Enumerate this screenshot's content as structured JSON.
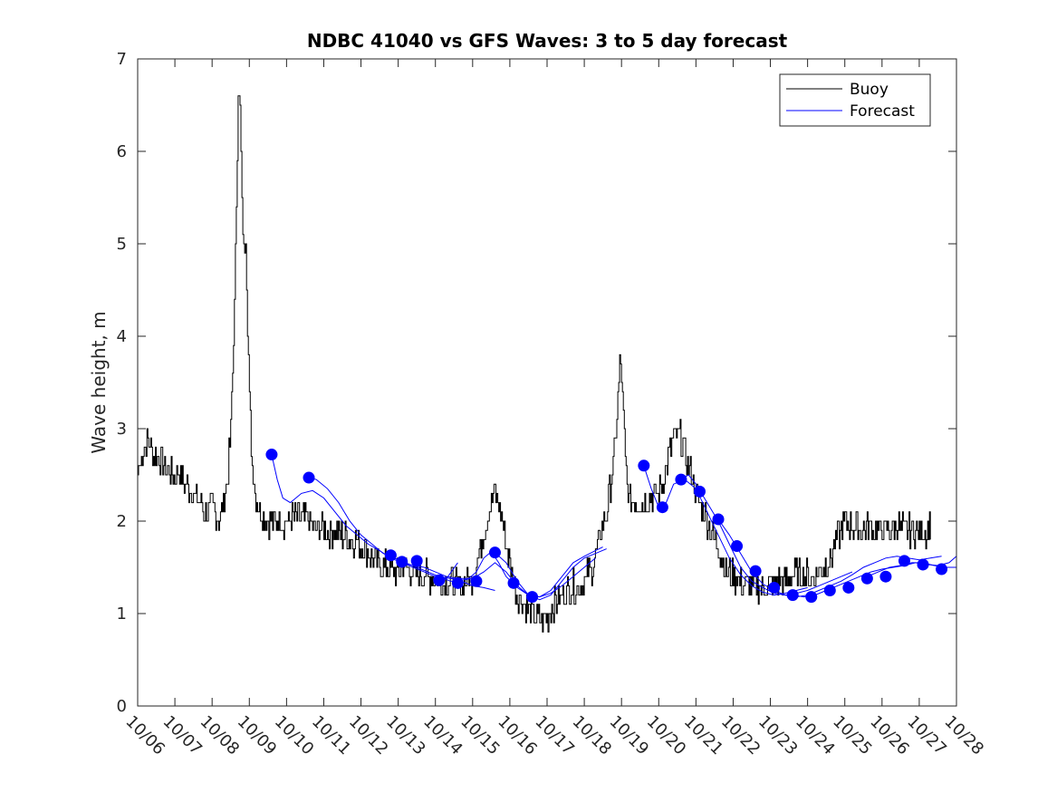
{
  "chart_data": {
    "type": "line",
    "title": "NDBC 41040 vs GFS Waves: 3 to 5 day forecast",
    "xlabel": "",
    "ylabel": "Wave height, m",
    "x_unit": "days since 10/06",
    "xlim": [
      0,
      22
    ],
    "ylim": [
      0,
      7
    ],
    "yticks": [
      0,
      1,
      2,
      3,
      4,
      5,
      6,
      7
    ],
    "xtick_labels": [
      "10/06",
      "10/07",
      "10/08",
      "10/09",
      "10/10",
      "10/11",
      "10/12",
      "10/13",
      "10/14",
      "10/15",
      "10/16",
      "10/17",
      "10/18",
      "10/19",
      "10/20",
      "10/21",
      "10/22",
      "10/23",
      "10/24",
      "10/25",
      "10/26",
      "10/27",
      "10/28"
    ],
    "legend": {
      "position": "top-right",
      "entries": [
        "Buoy",
        "Forecast"
      ]
    },
    "colors": {
      "buoy": "#000000",
      "forecast": "#0000ff",
      "axis": "#262626"
    },
    "buoy_anchors": {
      "x": [
        0.0,
        0.1,
        0.25,
        0.35,
        0.5,
        0.7,
        0.9,
        1.1,
        1.3,
        1.5,
        1.7,
        1.8,
        1.9,
        2.0,
        2.1,
        2.2,
        2.3,
        2.4,
        2.5,
        2.6,
        2.7,
        2.75,
        2.8,
        2.85,
        2.9,
        2.95,
        3.0,
        3.05,
        3.1,
        3.2,
        3.3,
        3.4,
        3.5,
        3.6,
        3.8,
        4.0,
        4.3,
        4.6,
        4.9,
        5.2,
        5.5,
        5.8,
        6.1,
        6.4,
        6.7,
        7.0,
        7.2,
        7.5,
        7.8,
        8.1,
        8.4,
        8.7,
        9.0,
        9.2,
        9.4,
        9.6,
        9.8,
        10.0,
        10.2,
        10.4,
        10.6,
        10.8,
        11.0,
        11.2,
        11.4,
        11.6,
        11.8,
        12.0,
        12.2,
        12.4,
        12.6,
        12.8,
        12.9,
        12.95,
        13.0,
        13.05,
        13.1,
        13.2,
        13.4,
        13.6,
        13.8,
        14.0,
        14.2,
        14.4,
        14.6,
        14.8,
        15.0,
        15.2,
        15.4,
        15.6,
        15.8,
        16.0,
        16.2,
        16.4,
        16.6,
        16.8,
        17.0,
        17.2,
        17.4,
        17.6,
        17.8,
        18.0,
        18.2,
        18.4,
        18.6,
        18.8,
        19.0,
        19.2,
        19.4,
        19.6,
        19.8,
        20.0,
        20.2,
        20.4,
        20.6,
        20.8,
        21.0,
        21.2,
        21.3
      ],
      "y": [
        2.5,
        2.7,
        2.9,
        2.8,
        2.7,
        2.6,
        2.5,
        2.5,
        2.4,
        2.3,
        2.2,
        2.1,
        2.1,
        2.15,
        2.1,
        2.0,
        2.2,
        2.4,
        3.0,
        4.3,
        6.7,
        6.4,
        5.4,
        4.9,
        5.1,
        4.2,
        3.3,
        2.8,
        2.5,
        2.2,
        2.1,
        2.0,
        2.0,
        2.0,
        2.0,
        2.0,
        2.05,
        2.0,
        1.9,
        1.9,
        1.85,
        1.8,
        1.7,
        1.55,
        1.5,
        1.45,
        1.5,
        1.45,
        1.4,
        1.35,
        1.35,
        1.3,
        1.4,
        1.7,
        2.1,
        2.3,
        2.0,
        1.5,
        1.2,
        1.1,
        1.0,
        0.95,
        0.95,
        1.1,
        1.2,
        1.3,
        1.3,
        1.35,
        1.5,
        1.8,
        2.1,
        2.7,
        3.3,
        3.7,
        3.6,
        3.1,
        2.6,
        2.2,
        2.2,
        2.2,
        2.25,
        2.3,
        2.6,
        2.9,
        2.9,
        2.6,
        2.3,
        2.1,
        1.9,
        1.7,
        1.5,
        1.4,
        1.35,
        1.3,
        1.3,
        1.3,
        1.3,
        1.35,
        1.35,
        1.4,
        1.45,
        1.4,
        1.4,
        1.5,
        1.6,
        1.8,
        2.0,
        1.95,
        1.9,
        1.95,
        1.9,
        1.9,
        1.9,
        1.95,
        1.9,
        1.9,
        1.9,
        1.9,
        1.95
      ]
    },
    "forecast_series": [
      {
        "x": [
          3.6,
          3.75,
          3.9,
          4.1,
          4.4,
          4.7,
          5.0,
          5.3,
          5.6,
          5.9,
          6.2,
          6.5,
          6.8,
          7.1,
          7.4,
          7.7,
          8.0,
          8.3,
          8.6
        ],
        "y": [
          2.72,
          2.45,
          2.25,
          2.2,
          2.3,
          2.33,
          2.25,
          2.1,
          1.95,
          1.85,
          1.75,
          1.68,
          1.6,
          1.55,
          1.5,
          1.45,
          1.4,
          1.38,
          1.55
        ]
      },
      {
        "x": [
          4.6,
          4.8,
          5.1,
          5.4,
          5.7,
          6.0,
          6.3,
          6.6,
          6.9,
          7.2,
          7.5,
          7.8,
          8.1,
          8.4,
          8.7,
          9.0,
          9.3,
          9.6
        ],
        "y": [
          2.47,
          2.45,
          2.35,
          2.2,
          2.0,
          1.85,
          1.75,
          1.65,
          1.6,
          1.55,
          1.5,
          1.45,
          1.4,
          1.35,
          1.35,
          1.3,
          1.28,
          1.25
        ]
      },
      {
        "x": [
          6.8,
          7.1,
          7.4,
          7.7,
          8.0,
          8.3,
          8.6,
          8.9,
          9.1,
          9.3,
          9.5,
          9.7,
          9.9,
          10.2,
          10.5,
          10.8,
          11.1,
          11.4,
          11.7,
          12.0,
          12.3
        ],
        "y": [
          1.63,
          1.55,
          1.52,
          1.5,
          1.45,
          1.4,
          1.38,
          1.38,
          1.45,
          1.6,
          1.67,
          1.55,
          1.4,
          1.28,
          1.2,
          1.18,
          1.22,
          1.3,
          1.4,
          1.5,
          1.6
        ]
      },
      {
        "x": [
          8.1,
          8.4,
          8.7,
          9.0,
          9.3,
          9.6,
          9.9,
          10.2,
          10.5,
          10.8,
          11.1,
          11.4,
          11.7,
          12.0,
          12.3,
          12.5
        ],
        "y": [
          1.4,
          1.38,
          1.36,
          1.38,
          1.45,
          1.55,
          1.45,
          1.3,
          1.2,
          1.18,
          1.25,
          1.4,
          1.55,
          1.62,
          1.68,
          1.72
        ]
      },
      {
        "x": [
          9.6,
          9.9,
          10.2,
          10.5,
          10.8,
          11.1,
          11.4,
          11.7,
          12.0,
          12.3,
          12.6
        ],
        "y": [
          1.66,
          1.55,
          1.35,
          1.2,
          1.15,
          1.2,
          1.35,
          1.5,
          1.6,
          1.65,
          1.7
        ]
      },
      {
        "x": [
          13.6,
          13.8,
          14.0,
          14.2,
          14.4,
          14.7,
          15.0,
          15.3,
          15.6,
          15.9,
          16.2,
          16.5,
          16.8,
          17.1,
          17.4,
          17.7,
          18.0
        ],
        "y": [
          2.6,
          2.35,
          2.15,
          2.2,
          2.4,
          2.45,
          2.35,
          2.1,
          1.85,
          1.6,
          1.42,
          1.3,
          1.23,
          1.2,
          1.22,
          1.25,
          1.28
        ]
      },
      {
        "x": [
          14.6,
          14.8,
          15.0,
          15.3,
          15.6,
          15.9,
          16.2,
          16.5,
          16.8,
          17.1,
          17.4,
          17.7,
          18.0,
          18.3,
          18.6,
          18.9,
          19.2
        ],
        "y": [
          2.45,
          2.5,
          2.4,
          2.2,
          2.0,
          1.75,
          1.5,
          1.35,
          1.28,
          1.22,
          1.2,
          1.22,
          1.25,
          1.3,
          1.35,
          1.4,
          1.45
        ]
      },
      {
        "x": [
          15.6,
          15.9,
          16.2,
          16.5,
          16.8,
          17.1,
          17.4,
          17.7,
          18.0,
          18.3,
          18.6,
          18.9,
          19.2,
          19.5,
          19.8,
          20.1,
          20.4,
          20.7,
          21.0,
          21.3,
          21.6
        ],
        "y": [
          2.02,
          1.85,
          1.65,
          1.45,
          1.32,
          1.25,
          1.2,
          1.18,
          1.2,
          1.25,
          1.3,
          1.35,
          1.42,
          1.5,
          1.55,
          1.6,
          1.62,
          1.6,
          1.58,
          1.6,
          1.62
        ]
      },
      {
        "x": [
          17.6,
          17.9,
          18.2,
          18.5,
          18.8,
          19.1,
          19.4,
          19.7,
          20.0,
          20.3,
          20.6,
          20.9,
          21.2,
          21.5,
          21.8,
          22.0
        ],
        "y": [
          1.2,
          1.18,
          1.2,
          1.25,
          1.3,
          1.35,
          1.4,
          1.45,
          1.48,
          1.5,
          1.52,
          1.55,
          1.53,
          1.52,
          1.55,
          1.62
        ]
      },
      {
        "x": [
          19.6,
          19.9,
          20.2,
          20.5,
          20.8,
          21.1,
          21.4,
          21.7,
          22.0
        ],
        "y": [
          1.4,
          1.45,
          1.5,
          1.52,
          1.55,
          1.55,
          1.52,
          1.5,
          1.5
        ]
      }
    ],
    "forecast_markers": {
      "x": [
        3.6,
        4.6,
        6.8,
        7.1,
        7.5,
        8.1,
        8.6,
        9.1,
        9.6,
        10.1,
        10.6,
        13.6,
        14.1,
        14.6,
        15.1,
        15.6,
        16.1,
        16.6,
        17.1,
        17.6,
        18.1,
        18.6,
        19.1,
        19.6,
        20.1,
        20.6,
        21.1,
        21.6
      ],
      "y": [
        2.72,
        2.47,
        1.63,
        1.56,
        1.57,
        1.36,
        1.33,
        1.35,
        1.66,
        1.33,
        1.18,
        2.6,
        2.15,
        2.45,
        2.32,
        2.02,
        1.73,
        1.46,
        1.28,
        1.2,
        1.18,
        1.25,
        1.28,
        1.38,
        1.4,
        1.57,
        1.53,
        1.48
      ]
    }
  }
}
